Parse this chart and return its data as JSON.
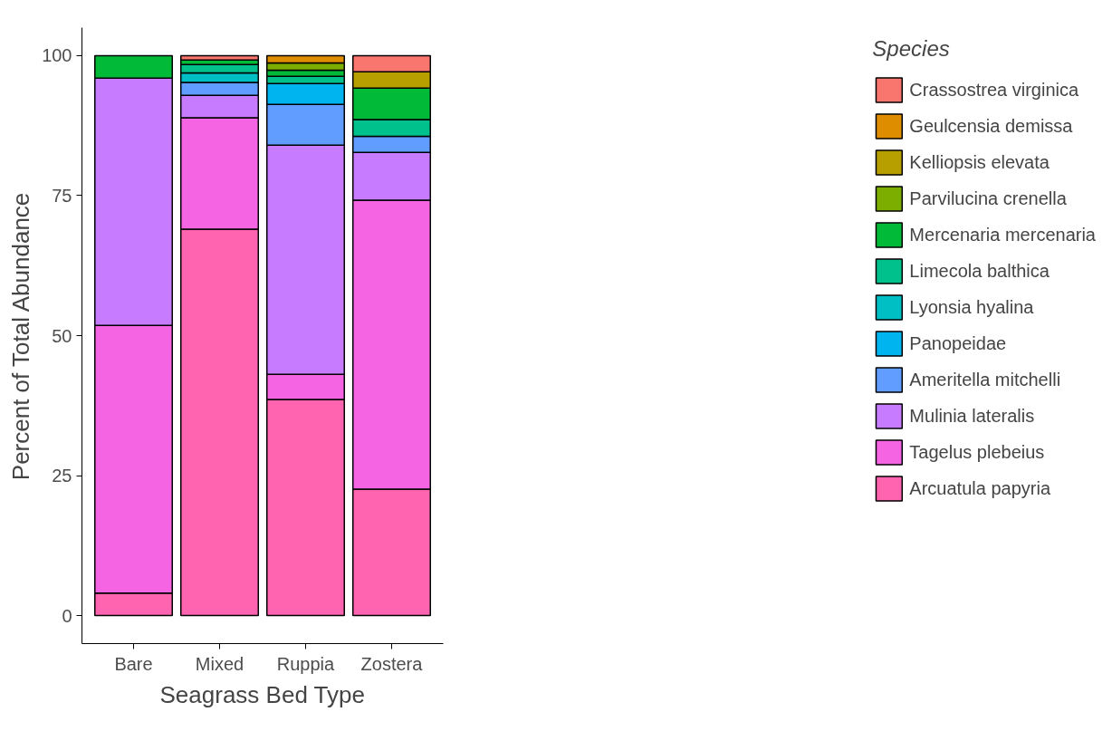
{
  "chart_data": {
    "type": "bar",
    "stacked": true,
    "xlabel": "Seagrass Bed Type",
    "ylabel": "Percent of Total Abundance",
    "legend_title": "Species",
    "legend": "right",
    "grid": false,
    "categories": [
      "Bare",
      "Mixed",
      "Ruppia",
      "Zostera"
    ],
    "ylim": [
      -5,
      105
    ],
    "yticks": [
      0,
      25,
      50,
      75,
      100
    ],
    "series": [
      {
        "name": "Arcuatula papyria",
        "color": "#ff64b0",
        "values": [
          4.0,
          69.0,
          38.6,
          22.6
        ]
      },
      {
        "name": "Tagelus plebeius",
        "color": "#f564e3",
        "values": [
          47.8,
          19.9,
          4.5,
          51.6
        ]
      },
      {
        "name": "Mulinia lateralis",
        "color": "#c77cff",
        "values": [
          44.2,
          4.0,
          40.9,
          8.5
        ]
      },
      {
        "name": "Ameritella mitchelli",
        "color": "#619cff",
        "values": [
          null,
          2.3,
          7.3,
          2.9
        ]
      },
      {
        "name": "Panopeidae",
        "color": "#00b4f0",
        "values": [
          null,
          null,
          3.7,
          null
        ]
      },
      {
        "name": "Lyonsia hyalina",
        "color": "#00bfc4",
        "values": [
          null,
          1.7,
          null,
          null
        ]
      },
      {
        "name": "Limecola balthica",
        "color": "#00c08b",
        "values": [
          null,
          1.5,
          1.3,
          3.0
        ]
      },
      {
        "name": "Mercenaria mercenaria",
        "color": "#00ba38",
        "values": [
          4.0,
          0.8,
          1.1,
          5.6
        ]
      },
      {
        "name": "Parvilucina crenella",
        "color": "#7cae00",
        "values": [
          null,
          null,
          1.3,
          null
        ]
      },
      {
        "name": "Kelliopsis elevata",
        "color": "#b79f00",
        "values": [
          null,
          null,
          null,
          2.9
        ]
      },
      {
        "name": "Geulcensia demissa",
        "color": "#de8c00",
        "values": [
          null,
          null,
          1.3,
          null
        ]
      },
      {
        "name": "Crassostrea virginica",
        "color": "#f8766d",
        "values": [
          null,
          0.8,
          null,
          2.9
        ]
      }
    ]
  }
}
